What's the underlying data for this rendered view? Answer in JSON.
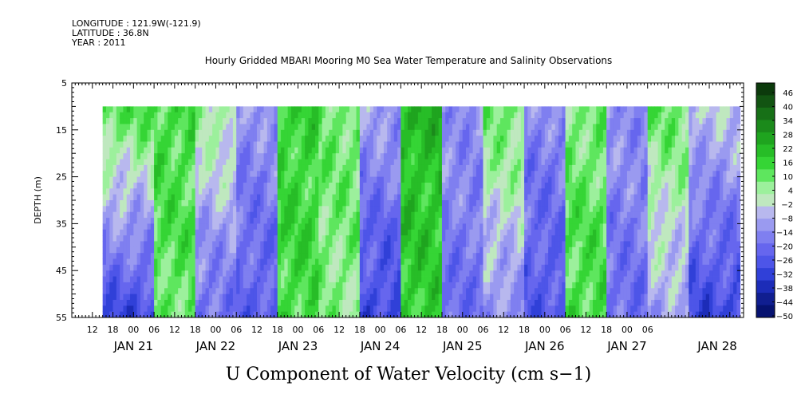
{
  "meta": {
    "longitude": "LONGITUDE : 121.9W(-121.9)",
    "latitude": "LATITUDE : 36.8N",
    "year": "YEAR : 2011"
  },
  "chart_data": {
    "type": "heatmap",
    "title": "Hourly Gridded MBARI Mooring M0 Sea Water Temperature and Salinity Observations",
    "variable_label": "U Component of Water Velocity (cm s−1)",
    "ylabel": "DEPTH (m)",
    "y_axis": {
      "ylim": [
        5,
        55
      ],
      "inverted": true,
      "tick_values": [
        5,
        15,
        25,
        35,
        45,
        55
      ],
      "tick_labels": [
        "5",
        "15",
        "25",
        "35",
        "45",
        "55"
      ]
    },
    "x_axis": {
      "xlim_hours_label": "2011-01-20 06:00 to 2011-01-28 10:00",
      "hour_tick_labels": [
        "12",
        "18",
        "00",
        "06",
        "12",
        "18",
        "00",
        "06",
        "12",
        "18",
        "00",
        "06",
        "12",
        "18",
        "00",
        "06",
        "12",
        "18",
        "00",
        "06",
        "12",
        "18",
        "00",
        "06",
        "12",
        "18",
        "00",
        "06"
      ],
      "day_labels": [
        "JAN 21",
        "JAN 22",
        "JAN 23",
        "JAN 24",
        "JAN 25",
        "JAN 26",
        "JAN 27",
        "JAN 28"
      ]
    },
    "data_depth_range_m": [
      10,
      55
    ],
    "data_time_start": "2011-01-20 15:00",
    "data_time_end": "2011-01-28 09:00",
    "colorbar": {
      "ticks": [
        "46",
        "40",
        "34",
        "28",
        "22",
        "16",
        "10",
        "4",
        "−2",
        "−8",
        "−14",
        "−20",
        "−26",
        "−32",
        "−38",
        "−44",
        "−50"
      ],
      "range": [
        -50,
        50
      ],
      "colors_high_to_low": [
        "#0c3a0c",
        "#125412",
        "#177017",
        "#1b8a1b",
        "#1fa41f",
        "#27bd27",
        "#35d535",
        "#5ee65e",
        "#9cf09c",
        "#bfe8bf",
        "#b8b8ee",
        "#9a9af0",
        "#7f7ff0",
        "#6666ee",
        "#4d55e8",
        "#3040d8",
        "#1c2cb8",
        "#101e90",
        "#061270"
      ]
    },
    "field_profile": {
      "description": "U velocity pattern alternating green (positive) and blue (negative) bands through time",
      "time_bands": [
        {
          "start": "2011-01-20 15:00",
          "end": "2011-01-21 06:00",
          "surface": 12,
          "bottom": -30
        },
        {
          "start": "2011-01-21 06:00",
          "end": "2011-01-21 18:00",
          "surface": 14,
          "bottom": 10
        },
        {
          "start": "2011-01-21 18:00",
          "end": "2011-01-22 06:00",
          "surface": 4,
          "bottom": -20
        },
        {
          "start": "2011-01-22 06:00",
          "end": "2011-01-22 18:00",
          "surface": -12,
          "bottom": -24
        },
        {
          "start": "2011-01-22 18:00",
          "end": "2011-01-23 06:00",
          "surface": 16,
          "bottom": 14
        },
        {
          "start": "2011-01-23 06:00",
          "end": "2011-01-23 18:00",
          "surface": 10,
          "bottom": 6
        },
        {
          "start": "2011-01-23 18:00",
          "end": "2011-01-24 06:00",
          "surface": -10,
          "bottom": -30
        },
        {
          "start": "2011-01-24 06:00",
          "end": "2011-01-24 18:00",
          "surface": 22,
          "bottom": 16
        },
        {
          "start": "2011-01-24 18:00",
          "end": "2011-01-25 06:00",
          "surface": -12,
          "bottom": -20
        },
        {
          "start": "2011-01-25 06:00",
          "end": "2011-01-25 18:00",
          "surface": 10,
          "bottom": -14
        },
        {
          "start": "2011-01-25 18:00",
          "end": "2011-01-26 06:00",
          "surface": -14,
          "bottom": -26
        },
        {
          "start": "2011-01-26 06:00",
          "end": "2011-01-26 18:00",
          "surface": 8,
          "bottom": 14
        },
        {
          "start": "2011-01-26 18:00",
          "end": "2011-01-27 06:00",
          "surface": -12,
          "bottom": -20
        },
        {
          "start": "2011-01-27 06:00",
          "end": "2011-01-27 18:00",
          "surface": 10,
          "bottom": -10
        },
        {
          "start": "2011-01-27 18:00",
          "end": "2011-01-28 09:00",
          "surface": -4,
          "bottom": -30
        }
      ]
    }
  }
}
